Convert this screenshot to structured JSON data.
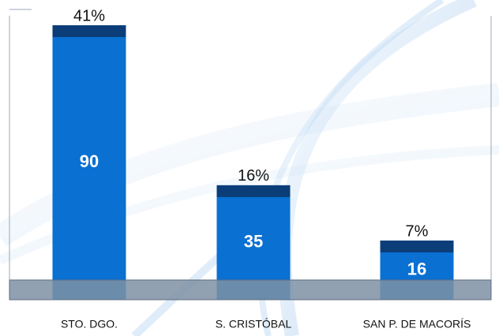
{
  "chart_data": {
    "type": "bar",
    "categories": [
      "STO. DGO.",
      "S. CRISTÓBAL",
      "SAN P. DE MACORÍS"
    ],
    "values": [
      90,
      35,
      16
    ],
    "color": "#0a70d2",
    "percentages": {
      "values": [
        41,
        16,
        7
      ],
      "value_labels": [
        "41%",
        "16%",
        "7%"
      ]
    }
  }
}
